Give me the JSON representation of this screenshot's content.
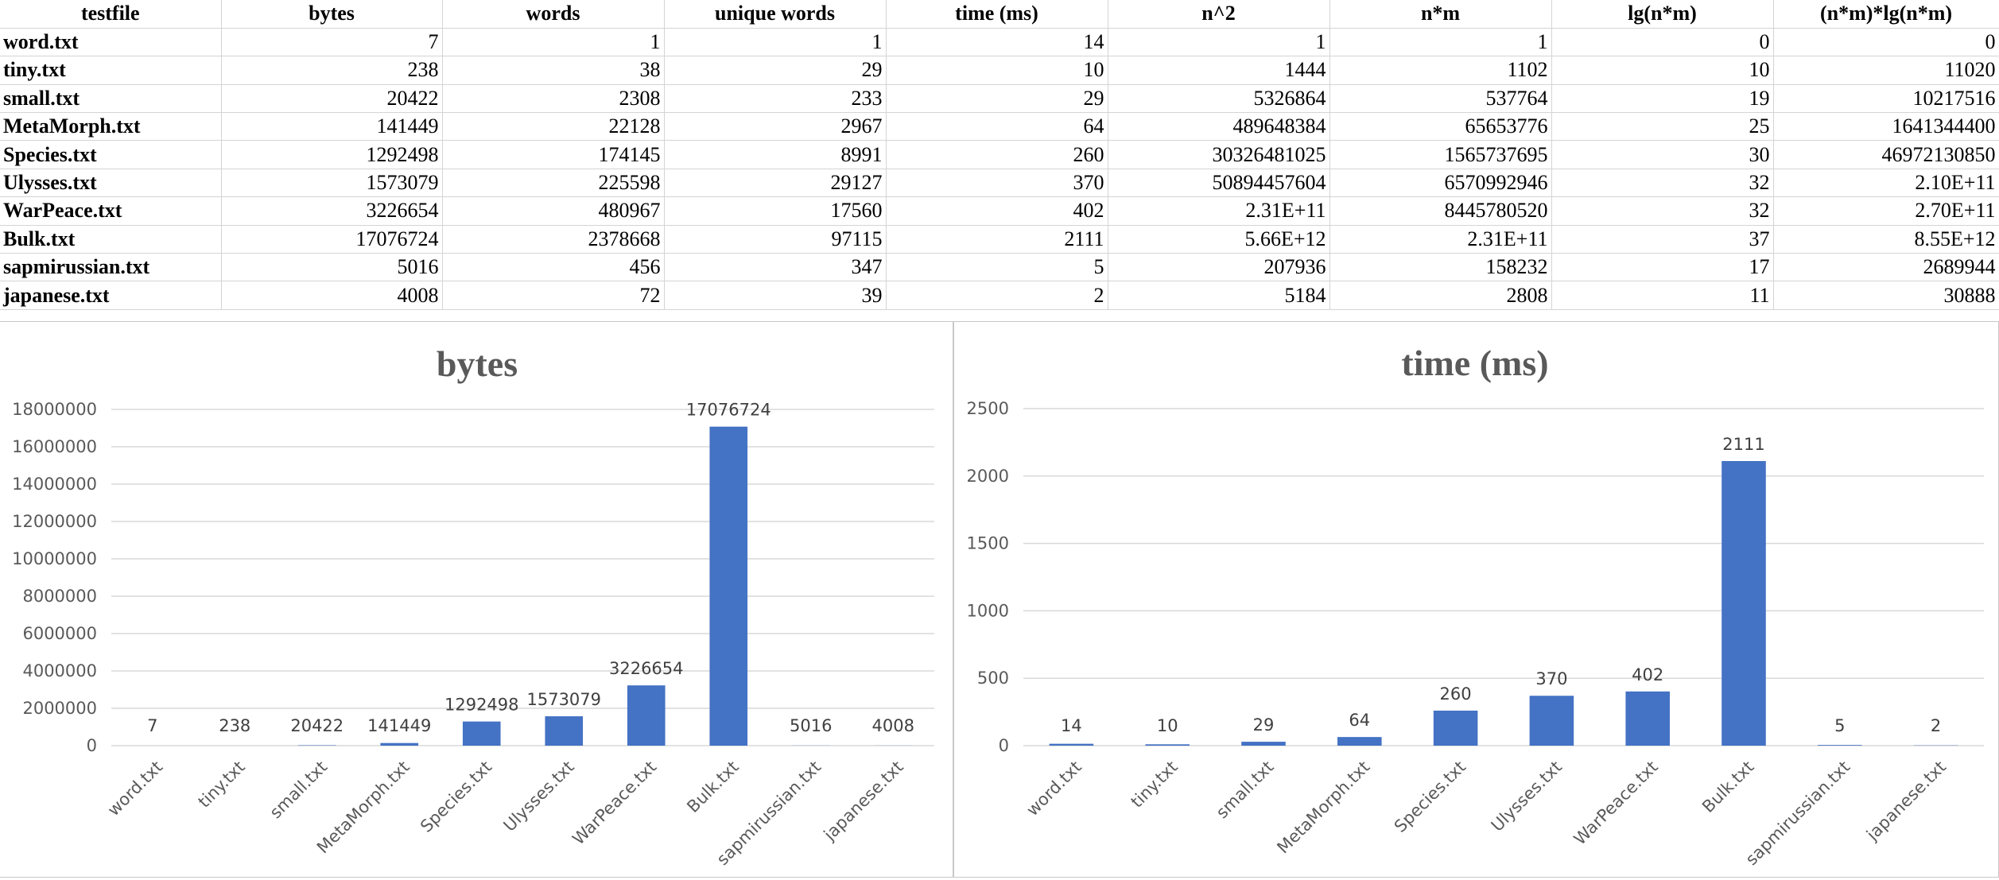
{
  "table": {
    "headers": [
      "testfile",
      "bytes",
      "words",
      "unique words",
      "time (ms)",
      "n^2",
      "n*m",
      "lg(n*m)",
      "(n*m)*lg(n*m)"
    ],
    "rows": [
      [
        "word.txt",
        "7",
        "1",
        "1",
        "14",
        "1",
        "1",
        "0",
        "0"
      ],
      [
        "tiny.txt",
        "238",
        "38",
        "29",
        "10",
        "1444",
        "1102",
        "10",
        "11020"
      ],
      [
        "small.txt",
        "20422",
        "2308",
        "233",
        "29",
        "5326864",
        "537764",
        "19",
        "10217516"
      ],
      [
        "MetaMorph.txt",
        "141449",
        "22128",
        "2967",
        "64",
        "489648384",
        "65653776",
        "25",
        "1641344400"
      ],
      [
        "Species.txt",
        "1292498",
        "174145",
        "8991",
        "260",
        "30326481025",
        "1565737695",
        "30",
        "46972130850"
      ],
      [
        "Ulysses.txt",
        "1573079",
        "225598",
        "29127",
        "370",
        "50894457604",
        "6570992946",
        "32",
        "2.10E+11"
      ],
      [
        "WarPeace.txt",
        "3226654",
        "480967",
        "17560",
        "402",
        "2.31E+11",
        "8445780520",
        "32",
        "2.70E+11"
      ],
      [
        "Bulk.txt",
        "17076724",
        "2378668",
        "97115",
        "2111",
        "5.66E+12",
        "2.31E+11",
        "37",
        "8.55E+12"
      ],
      [
        "sapmirussian.txt",
        "5016",
        "456",
        "347",
        "5",
        "207936",
        "158232",
        "17",
        "2689944"
      ],
      [
        "japanese.txt",
        "4008",
        "72",
        "39",
        "2",
        "5184",
        "2808",
        "11",
        "30888"
      ]
    ]
  },
  "chart_data": [
    {
      "type": "bar",
      "title": "bytes",
      "categories": [
        "word.txt",
        "tiny.txt",
        "small.txt",
        "MetaMorph.txt",
        "Species.txt",
        "Ulysses.txt",
        "WarPeace.txt",
        "Bulk.txt",
        "sapmirussian.txt",
        "japanese.txt"
      ],
      "values": [
        7,
        238,
        20422,
        141449,
        1292498,
        1573079,
        3226654,
        17076724,
        5016,
        4008
      ],
      "ylim": [
        0,
        18000000
      ],
      "yticks": [
        0,
        2000000,
        4000000,
        6000000,
        8000000,
        10000000,
        12000000,
        14000000,
        16000000,
        18000000
      ],
      "grid": true,
      "legend": "none",
      "bar_color": "#4472c4"
    },
    {
      "type": "bar",
      "title": "time (ms)",
      "categories": [
        "word.txt",
        "tiny.txt",
        "small.txt",
        "MetaMorph.txt",
        "Species.txt",
        "Ulysses.txt",
        "WarPeace.txt",
        "Bulk.txt",
        "sapmirussian.txt",
        "japanese.txt"
      ],
      "values": [
        14,
        10,
        29,
        64,
        260,
        370,
        402,
        2111,
        5,
        2
      ],
      "ylim": [
        0,
        2500
      ],
      "yticks": [
        0,
        500,
        1000,
        1500,
        2000,
        2500
      ],
      "grid": true,
      "legend": "none",
      "bar_color": "#4472c4"
    }
  ]
}
